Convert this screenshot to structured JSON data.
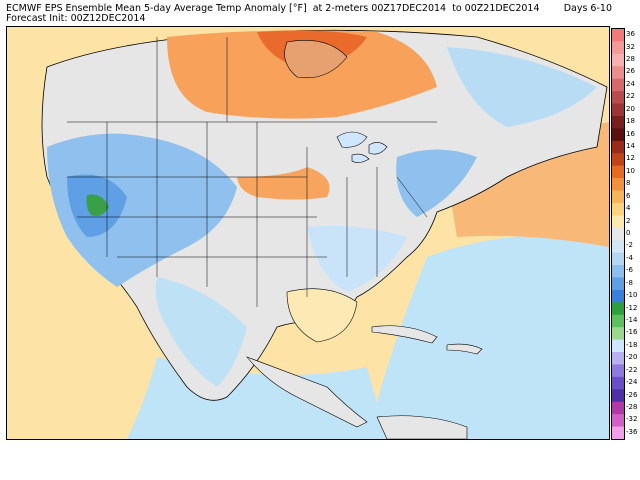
{
  "header": {
    "line1": "ECMWF EPS Ensemble Mean 5-day Average Temp Anomaly [°F]  at 2-meters 00Z17DEC2014  to 00Z21DEC2014",
    "days": "Days 6-10",
    "line2": "Forecast Init: 00Z12DEC2014"
  },
  "colorbar": {
    "levels": [
      36,
      32,
      28,
      26,
      24,
      22,
      20,
      18,
      16,
      14,
      12,
      10,
      8,
      6,
      4,
      2,
      0,
      -2,
      -4,
      -6,
      -8,
      -10,
      -12,
      -14,
      -16,
      -18,
      -20,
      -22,
      -24,
      -26,
      -28,
      -32,
      -36
    ],
    "colors": [
      "#f27a7a",
      "#f49a9a",
      "#f6b2b2",
      "#ea8e8e",
      "#d66a6a",
      "#b94d4d",
      "#9c3535",
      "#7a1f1f",
      "#5a1010",
      "#9b2a1a",
      "#c04418",
      "#e56a22",
      "#f09040",
      "#f6b45c",
      "#fbd280",
      "#fce9b0",
      "#e8e8e8",
      "#d2e6f6",
      "#b4d6f2",
      "#8cbff0",
      "#5f9fe4",
      "#3a7fda",
      "#2ca03c",
      "#5cc060",
      "#9ad890",
      "#cfe6ff",
      "#b8b0f0",
      "#8e7ae0",
      "#6a50c8",
      "#5030a8",
      "#b03aa8",
      "#d060c8",
      "#f0a0e8"
    ]
  },
  "map": {
    "ocean_color": "#fde9b3",
    "land_color": "#e8e8e8",
    "cold_color": "#a9d6f5",
    "warm_color": "#f6a45e"
  }
}
